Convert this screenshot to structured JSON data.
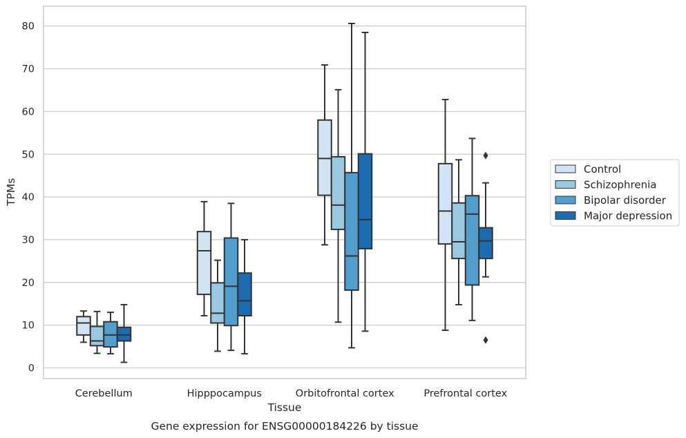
{
  "chart_data": {
    "type": "box",
    "xlabel": "Tissue",
    "ylabel": "TPMs",
    "caption": "Gene expression for ENSG00000184226 by tissue",
    "categories": [
      "Cerebellum",
      "Hipppocampus",
      "Orbitofrontal cortex",
      "Prefrontal cortex"
    ],
    "ylim": [
      -2.5,
      85
    ],
    "yticks": [
      0,
      10,
      20,
      30,
      40,
      50,
      60,
      70,
      80
    ],
    "grid": "horizontal",
    "legend_placement": "right",
    "series": [
      {
        "name": "Control",
        "color": "#d2e3f3",
        "boxes": [
          {
            "whislo": 6.0,
            "q1": 7.7,
            "med": 10.5,
            "q3": 12.0,
            "whishi": 13.3,
            "fliers": []
          },
          {
            "whislo": 12.2,
            "q1": 17.2,
            "med": 27.4,
            "q3": 31.9,
            "whishi": 38.9,
            "fliers": []
          },
          {
            "whislo": 28.8,
            "q1": 40.4,
            "med": 49.0,
            "q3": 58.0,
            "whishi": 70.9,
            "fliers": []
          },
          {
            "whislo": 8.8,
            "q1": 29.0,
            "med": 36.7,
            "q3": 47.8,
            "whishi": 62.8,
            "fliers": []
          }
        ]
      },
      {
        "name": "Schizophrenia",
        "color": "#9ac8e0",
        "boxes": [
          {
            "whislo": 3.4,
            "q1": 5.2,
            "med": 6.3,
            "q3": 9.7,
            "whishi": 13.2,
            "fliers": []
          },
          {
            "whislo": 3.9,
            "q1": 10.5,
            "med": 12.8,
            "q3": 19.9,
            "whishi": 25.2,
            "fliers": []
          },
          {
            "whislo": 10.7,
            "q1": 32.4,
            "med": 38.1,
            "q3": 49.4,
            "whishi": 65.1,
            "fliers": []
          },
          {
            "whislo": 14.8,
            "q1": 25.6,
            "med": 29.5,
            "q3": 38.6,
            "whishi": 48.7,
            "fliers": []
          }
        ]
      },
      {
        "name": "Bipolar disorder",
        "color": "#529dcc",
        "boxes": [
          {
            "whislo": 3.3,
            "q1": 4.9,
            "med": 7.7,
            "q3": 10.8,
            "whishi": 13.0,
            "fliers": []
          },
          {
            "whislo": 4.1,
            "q1": 9.9,
            "med": 19.1,
            "q3": 30.4,
            "whishi": 38.5,
            "fliers": []
          },
          {
            "whislo": 4.7,
            "q1": 18.2,
            "med": 26.2,
            "q3": 45.7,
            "whishi": 80.6,
            "fliers": []
          },
          {
            "whislo": 11.1,
            "q1": 19.4,
            "med": 36.0,
            "q3": 40.3,
            "whishi": 53.7,
            "fliers": []
          }
        ]
      },
      {
        "name": "Major depression",
        "color": "#1c6aaf",
        "boxes": [
          {
            "whislo": 1.3,
            "q1": 6.3,
            "med": 7.7,
            "q3": 9.5,
            "whishi": 14.8,
            "fliers": []
          },
          {
            "whislo": 3.3,
            "q1": 12.2,
            "med": 15.7,
            "q3": 22.2,
            "whishi": 30.0,
            "fliers": []
          },
          {
            "whislo": 8.6,
            "q1": 27.9,
            "med": 34.7,
            "q3": 50.1,
            "whishi": 78.5,
            "fliers": []
          },
          {
            "whislo": 21.3,
            "q1": 25.6,
            "med": 29.7,
            "q3": 32.8,
            "whishi": 43.3,
            "fliers": [
              49.7,
              6.5
            ]
          }
        ]
      }
    ]
  }
}
